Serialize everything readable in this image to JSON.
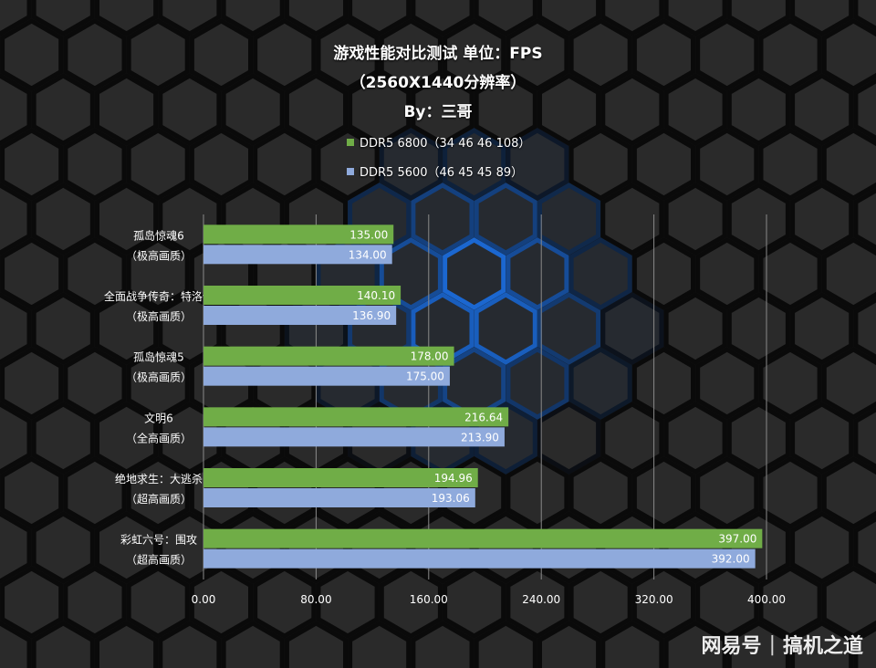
{
  "header": {
    "title_line1": "游戏性能对比测试 单位：FPS",
    "title_line2": "（2560X1440分辨率）",
    "title_line3": "By：三哥"
  },
  "colors": {
    "series1": "#70AD47",
    "series2": "#8FAADC",
    "grid": "#8a8a8a"
  },
  "chart_data": {
    "type": "bar",
    "orientation": "horizontal",
    "categories": [
      [
        "孤岛惊魂6",
        "（极高画质）"
      ],
      [
        "全面战争传奇：特洛伊",
        "（极高画质）"
      ],
      [
        "孤岛惊魂5",
        "（极高画质）"
      ],
      [
        "文明6",
        "（全高画质）"
      ],
      [
        "绝地求生：大逃杀",
        "（超高画质）"
      ],
      [
        "彩虹六号：围攻",
        "（超高画质）"
      ]
    ],
    "series": [
      {
        "name": "DDR5 6800（34 46 46 108）",
        "values": [
          135.0,
          140.1,
          178.0,
          216.64,
          194.96,
          397.0
        ]
      },
      {
        "name": "DDR5 5600（46 45 45 89）",
        "values": [
          134.0,
          136.9,
          175.0,
          213.9,
          193.06,
          392.0
        ]
      }
    ],
    "value_labels": [
      [
        "135.00",
        "140.10",
        "178.00",
        "216.64",
        "194.96",
        "397.00"
      ],
      [
        "134.00",
        "136.90",
        "175.00",
        "213.90",
        "193.06",
        "392.00"
      ]
    ],
    "xlim": [
      0,
      400
    ],
    "xticks": [
      0,
      80,
      160,
      240,
      320,
      400
    ],
    "xtick_labels": [
      "0.00",
      "80.00",
      "160.00",
      "240.00",
      "320.00",
      "400.00"
    ],
    "grid": true,
    "legend_position": "top"
  },
  "watermark": {
    "brand": "网易号",
    "separator": "|",
    "account": "搞机之道"
  }
}
